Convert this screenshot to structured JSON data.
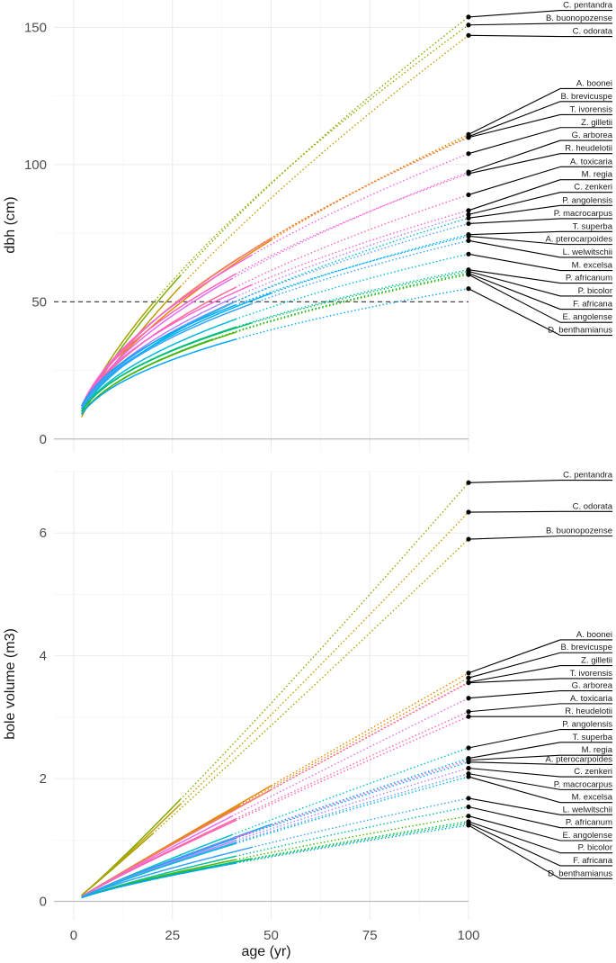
{
  "chart_data": [
    {
      "type": "line",
      "panel": "top",
      "xlabel": "",
      "ylabel": "dbh (cm)",
      "xlim": [
        -5,
        100
      ],
      "ylim": [
        -5,
        160
      ],
      "yticks": [
        0,
        50,
        100,
        150
      ],
      "xticks": [
        0,
        25,
        50,
        75,
        100
      ],
      "show_x_tick_labels": false,
      "reference_line": {
        "y": 50,
        "style": "dashed"
      },
      "series": [
        {
          "name": "C. pentandra",
          "color": "#7cae00",
          "start": 9,
          "observed_until": 27,
          "end": 153.8,
          "label_value": 156.2
        },
        {
          "name": "B. buonopozense",
          "color": "#a3a500",
          "start": 10,
          "observed_until": 20,
          "end": 150.9,
          "label_value": 151.5
        },
        {
          "name": "C. odorata",
          "color": "#c49a00",
          "start": 8,
          "observed_until": 27,
          "end": 147.1,
          "label_value": 146.7
        },
        {
          "name": "A. boonei",
          "color": "#e58700",
          "start": 10,
          "observed_until": 50,
          "end": 111.0,
          "label_value": 127.7
        },
        {
          "name": "B. brevicuspe",
          "color": "#d89000",
          "start": 11,
          "observed_until": 42,
          "end": 110.2,
          "label_value": 123.0
        },
        {
          "name": "T. ivorensis",
          "color": "#f8766d",
          "start": 11,
          "observed_until": 50,
          "end": 109.9,
          "label_value": 118.2
        },
        {
          "name": "Z. gilletii",
          "color": "#f564e3",
          "start": 12,
          "observed_until": 45,
          "end": 104.0,
          "label_value": 113.5
        },
        {
          "name": "G. arborea",
          "color": "#e76bf3",
          "start": 11,
          "observed_until": 40,
          "end": 97.3,
          "label_value": 108.8
        },
        {
          "name": "R. heudelotii",
          "color": "#ff62bc",
          "start": 12,
          "observed_until": 41,
          "end": 96.7,
          "label_value": 104.0
        },
        {
          "name": "A. toxicaria",
          "color": "#ff6a98",
          "start": 11,
          "observed_until": 41,
          "end": 89.0,
          "label_value": 99.2
        },
        {
          "name": "M. regia",
          "color": "#fd61d1",
          "start": 12,
          "observed_until": 45,
          "end": 83.3,
          "label_value": 94.5
        },
        {
          "name": "C. zenkeri",
          "color": "#b983ff",
          "start": 11,
          "observed_until": 41,
          "end": 81.8,
          "label_value": 89.9
        },
        {
          "name": "P. angolensis",
          "color": "#00bfc4",
          "start": 10,
          "observed_until": 40,
          "end": 80.5,
          "label_value": 85.1
        },
        {
          "name": "P. macrocarpus",
          "color": "#619cff",
          "start": 11,
          "observed_until": 41,
          "end": 78.5,
          "label_value": 80.3
        },
        {
          "name": "T. superba",
          "color": "#00b0f6",
          "start": 11,
          "observed_until": 50,
          "end": 74.5,
          "label_value": 75.6
        },
        {
          "name": "A. pterocarpoides",
          "color": "#00a9ff",
          "start": 12,
          "observed_until": 41,
          "end": 73.9,
          "label_value": 70.9
        },
        {
          "name": "L. welwitschii",
          "color": "#35a2ff",
          "start": 11,
          "observed_until": 45,
          "end": 72.3,
          "label_value": 66.2
        },
        {
          "name": "M. excelsa",
          "color": "#00bcd8",
          "start": 10,
          "observed_until": 41,
          "end": 67.4,
          "label_value": 61.4
        },
        {
          "name": "P. africanum",
          "color": "#00c19a",
          "start": 10,
          "observed_until": 41,
          "end": 61.7,
          "label_value": 56.8
        },
        {
          "name": "P. bicolor",
          "color": "#00be67",
          "start": 10,
          "observed_until": 45,
          "end": 61.1,
          "label_value": 52.1
        },
        {
          "name": "F. africana",
          "color": "#00ba38",
          "start": 9,
          "observed_until": 35,
          "end": 60.4,
          "label_value": 47.3
        },
        {
          "name": "E. angolense",
          "color": "#53b400",
          "start": 9,
          "observed_until": 41,
          "end": 59.9,
          "label_value": 42.5
        },
        {
          "name": "D. benthamianus",
          "color": "#00a6ff",
          "start": 9,
          "observed_until": 41,
          "end": 54.8,
          "label_value": 37.8
        }
      ]
    },
    {
      "type": "line",
      "panel": "bottom",
      "xlabel": "age (yr)",
      "ylabel": "bole volume (m3)",
      "xlim": [
        -5,
        100
      ],
      "ylim": [
        -0.3,
        7.0
      ],
      "yticks": [
        0,
        2,
        4,
        6
      ],
      "xticks": [
        0,
        25,
        50,
        75,
        100
      ],
      "show_x_tick_labels": true,
      "series": [
        {
          "name": "C. pentandra",
          "color": "#7cae00",
          "start": 0.1,
          "observed_until": 27,
          "end": 6.82,
          "label_value": 6.86
        },
        {
          "name": "C. odorata",
          "color": "#c49a00",
          "start": 0.1,
          "observed_until": 27,
          "end": 6.34,
          "label_value": 6.35
        },
        {
          "name": "B. buonopozense",
          "color": "#a3a500",
          "start": 0.1,
          "observed_until": 20,
          "end": 5.9,
          "label_value": 5.95
        },
        {
          "name": "A. boonei",
          "color": "#e58700",
          "start": 0.08,
          "observed_until": 50,
          "end": 3.72,
          "label_value": 4.26
        },
        {
          "name": "B. brevicuspe",
          "color": "#d89000",
          "start": 0.08,
          "observed_until": 42,
          "end": 3.64,
          "label_value": 4.05
        },
        {
          "name": "Z. gilletii",
          "color": "#f564e3",
          "start": 0.08,
          "observed_until": 45,
          "end": 3.57,
          "label_value": 3.84
        },
        {
          "name": "T. ivorensis",
          "color": "#f8766d",
          "start": 0.08,
          "observed_until": 50,
          "end": 3.56,
          "label_value": 3.63
        },
        {
          "name": "G. arborea",
          "color": "#e76bf3",
          "start": 0.08,
          "observed_until": 40,
          "end": 3.31,
          "label_value": 3.43
        },
        {
          "name": "A. toxicaria",
          "color": "#ff6a98",
          "start": 0.08,
          "observed_until": 41,
          "end": 3.09,
          "label_value": 3.22
        },
        {
          "name": "R. heudelotii",
          "color": "#ff62bc",
          "start": 0.08,
          "observed_until": 41,
          "end": 3.01,
          "label_value": 3.01
        },
        {
          "name": "P. angolensis",
          "color": "#00bfc4",
          "start": 0.07,
          "observed_until": 40,
          "end": 2.5,
          "label_value": 2.8
        },
        {
          "name": "T. superba",
          "color": "#00b0f6",
          "start": 0.07,
          "observed_until": 50,
          "end": 2.33,
          "label_value": 2.59
        },
        {
          "name": "M. regia",
          "color": "#fd61d1",
          "start": 0.07,
          "observed_until": 45,
          "end": 2.3,
          "label_value": 2.38
        },
        {
          "name": "A. pterocarpoides",
          "color": "#00a9ff",
          "start": 0.07,
          "observed_until": 41,
          "end": 2.27,
          "label_value": 2.23
        },
        {
          "name": "C. zenkeri",
          "color": "#b983ff",
          "start": 0.07,
          "observed_until": 41,
          "end": 2.17,
          "label_value": 2.03
        },
        {
          "name": "P. macrocarpus",
          "color": "#619cff",
          "start": 0.07,
          "observed_until": 41,
          "end": 2.08,
          "label_value": 1.82
        },
        {
          "name": "M. excelsa",
          "color": "#00bcd8",
          "start": 0.07,
          "observed_until": 41,
          "end": 2.03,
          "label_value": 1.61
        },
        {
          "name": "L. welwitschii",
          "color": "#35a2ff",
          "start": 0.07,
          "observed_until": 45,
          "end": 1.68,
          "label_value": 1.41
        },
        {
          "name": "P. africanum",
          "color": "#00c19a",
          "start": 0.06,
          "observed_until": 41,
          "end": 1.54,
          "label_value": 1.2
        },
        {
          "name": "E. angolense",
          "color": "#53b400",
          "start": 0.06,
          "observed_until": 41,
          "end": 1.39,
          "label_value": 0.99
        },
        {
          "name": "P. bicolor",
          "color": "#00be67",
          "start": 0.06,
          "observed_until": 45,
          "end": 1.3,
          "label_value": 0.79
        },
        {
          "name": "F. africana",
          "color": "#00ba38",
          "start": 0.06,
          "observed_until": 35,
          "end": 1.27,
          "label_value": 0.58
        },
        {
          "name": "D. benthamianus",
          "color": "#00a6ff",
          "start": 0.06,
          "observed_until": 41,
          "end": 1.24,
          "label_value": 0.37
        }
      ]
    }
  ]
}
